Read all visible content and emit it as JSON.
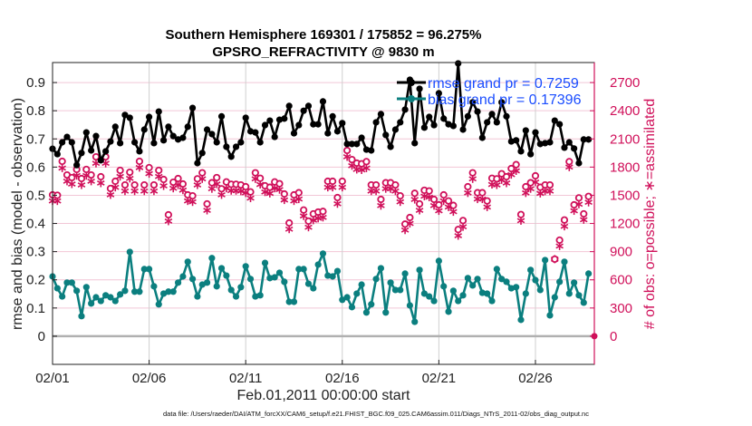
{
  "chart_data": {
    "type": "line",
    "title": "Southern Hemisphere 169301 / 175852 = 96.275%",
    "subtitle": "GPSRO_REFRACTIVITY @ 9830 m",
    "xlabel": "Feb.01,2011 00:00:00 start",
    "ylabel": "rmse and bias (model - observation)",
    "ylabel_right": "# of obs: o=possible; ∗=assimilated",
    "footnote": "data file: /Users/raeder/DAI/ATM_forcXX/CAM6_setup/f.e21.FHIST_BGC.f09_025.CAM6assim.011/Diags_NTrS_2011-02/obs_diag_output.nc",
    "x_unit": "days since Feb.01,2011 00:00:00",
    "x_step_days": 0.25,
    "xlim": [
      0,
      28.05
    ],
    "ylim": [
      -0.1,
      0.971
    ],
    "ylim_right": [
      -300,
      2913
    ],
    "grid": true,
    "legend_placement": "top-right",
    "x_ticks": [
      {
        "day": 0,
        "label": "02/01"
      },
      {
        "day": 5,
        "label": "02/06"
      },
      {
        "day": 10,
        "label": "02/11"
      },
      {
        "day": 15,
        "label": "02/16"
      },
      {
        "day": 20,
        "label": "02/21"
      },
      {
        "day": 25,
        "label": "02/26"
      }
    ],
    "y_ticks": [
      "0",
      "0.1",
      "0.2",
      "0.3",
      "0.4",
      "0.5",
      "0.6",
      "0.7",
      "0.8",
      "0.9"
    ],
    "y_tick_values": [
      0,
      0.1,
      0.2,
      0.3,
      0.4,
      0.5,
      0.6,
      0.7,
      0.8,
      0.9
    ],
    "y_right_ticks": [
      "0",
      "300",
      "600",
      "900",
      "1200",
      "1500",
      "1800",
      "2100",
      "2400",
      "2700"
    ],
    "y_right_tick_values": [
      0,
      300,
      600,
      900,
      1200,
      1500,
      1800,
      2100,
      2400,
      2700
    ],
    "colors": {
      "rmse": "#000000",
      "bias": "#0b7f7f",
      "obs": "#d0105a",
      "legend_text": "#1a4dff",
      "grid": "#f2c6d6",
      "zero_line": "#b0b0b0"
    },
    "series": [
      {
        "name": "rmse grand pr = 0.7259",
        "key": "rmse",
        "axis": "left",
        "values": [
          0.665,
          0.646,
          0.688,
          0.707,
          0.688,
          0.607,
          0.65,
          0.723,
          0.659,
          0.71,
          0.624,
          0.656,
          0.691,
          0.743,
          0.685,
          0.785,
          0.775,
          0.688,
          0.656,
          0.733,
          0.778,
          0.685,
          0.797,
          0.695,
          0.743,
          0.71,
          0.698,
          0.704,
          0.743,
          0.81,
          0.614,
          0.65,
          0.733,
          0.717,
          0.688,
          0.78,
          0.672,
          0.637,
          0.672,
          0.688,
          0.775,
          0.727,
          0.723,
          0.688,
          0.749,
          0.765,
          0.707,
          0.768,
          0.772,
          0.817,
          0.72,
          0.749,
          0.8,
          0.817,
          0.752,
          0.752,
          0.833,
          0.72,
          0.78,
          0.727,
          0.756,
          0.682,
          0.682,
          0.682,
          0.704,
          0.662,
          0.659,
          0.759,
          0.788,
          0.714,
          0.672,
          0.733,
          0.759,
          0.804,
          0.91,
          0.685,
          0.878,
          0.74,
          0.778,
          0.749,
          0.862,
          0.772,
          0.752,
          0.746,
          0.968,
          0.733,
          0.78,
          0.83,
          0.797,
          0.704,
          0.759,
          0.788,
          0.759,
          0.83,
          0.78,
          0.691,
          0.695,
          0.656,
          0.73,
          0.646,
          0.723,
          0.682,
          0.685,
          0.688,
          0.765,
          0.752,
          0.669,
          0.688,
          0.666,
          0.614,
          0.698,
          0.698
        ]
      },
      {
        "name": "bias grand pr = 0.17396",
        "key": "bias",
        "axis": "left",
        "values": [
          0.212,
          0.17,
          0.141,
          0.19,
          0.19,
          0.161,
          0.071,
          0.174,
          0.116,
          0.138,
          0.125,
          0.145,
          0.138,
          0.125,
          0.148,
          0.161,
          0.299,
          0.158,
          0.158,
          0.238,
          0.238,
          0.177,
          0.113,
          0.151,
          0.158,
          0.158,
          0.19,
          0.212,
          0.264,
          0.203,
          0.141,
          0.183,
          0.19,
          0.277,
          0.177,
          0.241,
          0.215,
          0.164,
          0.141,
          0.174,
          0.248,
          0.203,
          0.141,
          0.145,
          0.26,
          0.206,
          0.209,
          0.225,
          0.193,
          0.122,
          0.122,
          0.238,
          0.238,
          0.186,
          0.17,
          0.254,
          0.293,
          0.215,
          0.212,
          0.231,
          0.129,
          0.138,
          0.103,
          0.151,
          0.183,
          0.084,
          0.113,
          0.203,
          0.241,
          0.084,
          0.19,
          0.164,
          0.164,
          0.222,
          0.109,
          0.051,
          0.235,
          0.151,
          0.141,
          0.125,
          0.267,
          0.177,
          0.087,
          0.161,
          0.125,
          0.145,
          0.206,
          0.18,
          0.203,
          0.154,
          0.151,
          0.125,
          0.238,
          0.203,
          0.193,
          0.17,
          0.174,
          0.058,
          0.151,
          0.235,
          0.199,
          0.164,
          0.27,
          0.074,
          0.138,
          0.193,
          0.264,
          0.151,
          0.19,
          0.145,
          0.119,
          0.222
        ]
      },
      {
        "name": "possible",
        "key": "possible",
        "axis": "right",
        "values": [
          1504,
          1500,
          1861,
          1716,
          1688,
          1775,
          1678,
          1775,
          1716,
          1909,
          1697,
          1909,
          1572,
          1649,
          1765,
          1610,
          1745,
          1610,
          1861,
          1610,
          1794,
          1610,
          1765,
          1668,
          1292,
          1639,
          1678,
          1620,
          1504,
          1494,
          1675,
          1739,
          1408,
          1633,
          1688,
          1569,
          1642,
          1617,
          1617,
          1610,
          1591,
          1536,
          1739,
          1681,
          1601,
          1585,
          1642,
          1623,
          1514,
          1205,
          1504,
          1527,
          1343,
          1225,
          1302,
          1321,
          1328,
          1649,
          1649,
          1475,
          1649,
          1977,
          1880,
          1842,
          1835,
          1858,
          1610,
          1610,
          1456,
          1633,
          1633,
          1610,
          1494,
          1193,
          1263,
          1521,
          1408,
          1553,
          1546,
          1456,
          1398,
          1504,
          1440,
          1392,
          1135,
          1231,
          1591,
          1739,
          1527,
          1527,
          1440,
          1681,
          1675,
          1729,
          1697,
          1784,
          1826,
          1295,
          1591,
          1633,
          1707,
          1585,
          1610,
          1610,
          820,
          1022,
          1237,
          1858,
          1398,
          1472,
          1302,
          1488
        ]
      },
      {
        "name": "assimilated",
        "key": "assimilated",
        "axis": "right",
        "values": [
          1440,
          1440,
          1790,
          1650,
          1620,
          1710,
          1610,
          1710,
          1650,
          1840,
          1630,
          1840,
          1505,
          1585,
          1700,
          1545,
          1680,
          1545,
          1795,
          1545,
          1730,
          1545,
          1700,
          1600,
          1225,
          1575,
          1610,
          1555,
          1440,
          1430,
          1610,
          1675,
          1340,
          1570,
          1620,
          1505,
          1575,
          1550,
          1550,
          1545,
          1525,
          1470,
          1675,
          1615,
          1535,
          1520,
          1575,
          1560,
          1450,
          1140,
          1440,
          1460,
          1280,
          1160,
          1235,
          1255,
          1265,
          1585,
          1585,
          1410,
          1585,
          1910,
          1815,
          1775,
          1770,
          1790,
          1545,
          1545,
          1390,
          1570,
          1570,
          1545,
          1430,
          1130,
          1200,
          1455,
          1340,
          1490,
          1480,
          1390,
          1335,
          1440,
          1375,
          1325,
          1070,
          1165,
          1525,
          1675,
          1460,
          1460,
          1375,
          1615,
          1610,
          1665,
          1630,
          1720,
          1760,
          1230,
          1525,
          1570,
          1640,
          1520,
          1545,
          1545,
          820,
          960,
          1170,
          1800,
          1335,
          1405,
          1240,
          1425
        ]
      }
    ],
    "end_marker": {
      "day": 28.05,
      "count": 0
    }
  }
}
